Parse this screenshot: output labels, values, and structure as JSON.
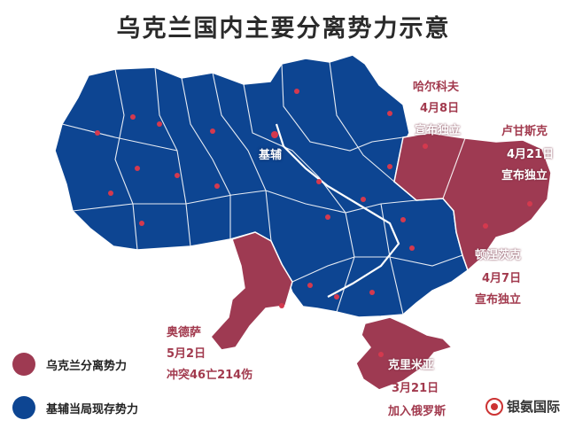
{
  "title": "乌克兰国内主要分离势力示意",
  "colors": {
    "separatist": "#9e3a52",
    "government": "#0d4592"
  },
  "capital": {
    "name": "基辅"
  },
  "regions": [
    {
      "name": "哈尔科夫",
      "date": "4月8日",
      "note": "宣布独立"
    },
    {
      "name": "卢甘斯克",
      "date": "4月21日",
      "note": "宣布独立"
    },
    {
      "name": "顿涅茨克",
      "date": "4月7日",
      "note": "宣布独立"
    },
    {
      "name": "奥德萨",
      "date": "5月2日",
      "note": "冲突46亡214伤"
    },
    {
      "name": "克里米亚",
      "date": "3月21日",
      "note": "加入俄罗斯"
    }
  ],
  "legend": [
    {
      "label": "乌克兰分离势力",
      "color": "#9e3a52"
    },
    {
      "label": "基辅当局现存势力",
      "color": "#0d4592"
    }
  ],
  "watermark": "银氨国际"
}
